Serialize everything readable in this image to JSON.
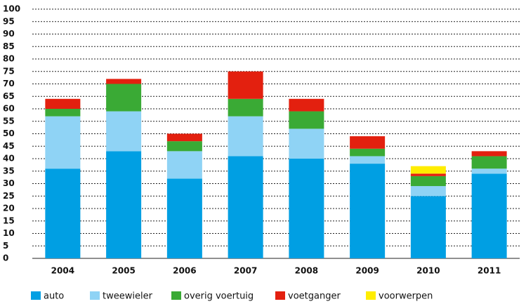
{
  "chart_data": {
    "type": "stacked_bar",
    "categories": [
      "2004",
      "2005",
      "2006",
      "2007",
      "2008",
      "2009",
      "2010",
      "2011"
    ],
    "series": [
      {
        "name": "auto",
        "color": "#009fe3",
        "values": [
          36,
          43,
          32,
          41,
          40,
          38,
          25,
          34
        ]
      },
      {
        "name": "tweewieler",
        "color": "#8fd3f5",
        "values": [
          21,
          16,
          11,
          16,
          12,
          3,
          4,
          2
        ]
      },
      {
        "name": "overig voertuig",
        "color": "#3aaa35",
        "values": [
          3,
          11,
          4,
          7,
          7,
          3,
          4,
          5
        ]
      },
      {
        "name": "voetganger",
        "color": "#e3200f",
        "values": [
          4,
          2,
          3,
          11,
          5,
          5,
          1,
          2
        ]
      },
      {
        "name": "voorwerpen",
        "color": "#ffed00",
        "values": [
          0,
          0,
          0,
          0,
          0,
          0,
          3,
          0
        ]
      }
    ],
    "ylim": [
      0,
      100
    ],
    "yticks": [
      0,
      5,
      10,
      15,
      20,
      25,
      30,
      35,
      40,
      45,
      50,
      55,
      60,
      65,
      70,
      75,
      80,
      85,
      90,
      95,
      100
    ],
    "grid": true
  }
}
